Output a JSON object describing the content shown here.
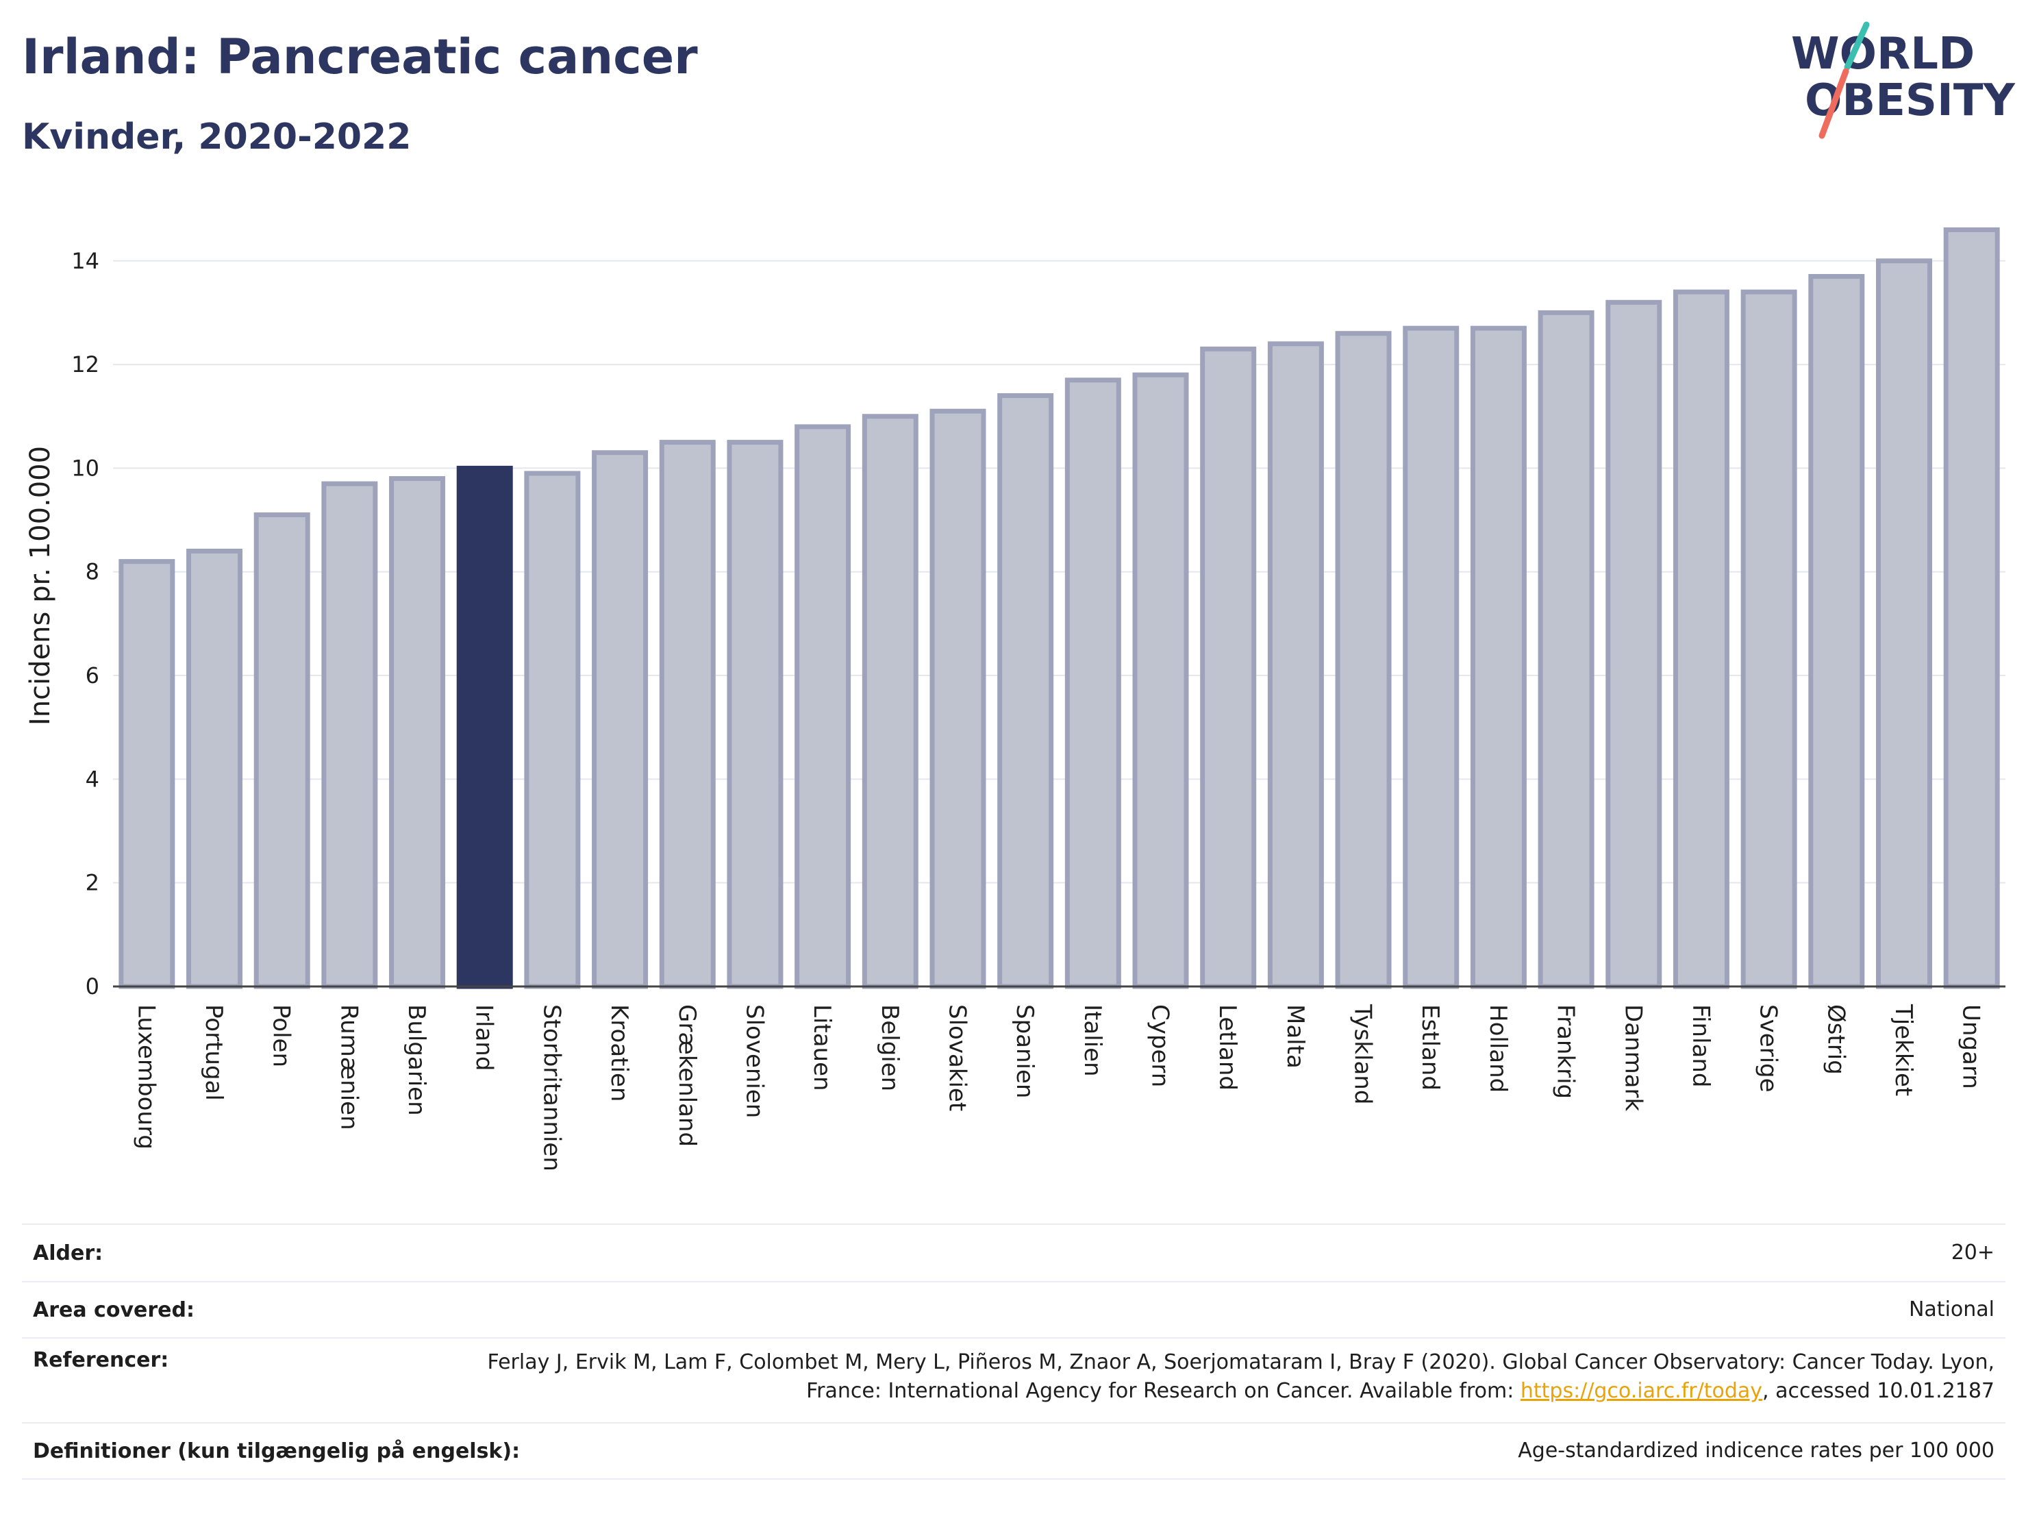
{
  "header": {
    "title": "Irland: Pancreatic cancer",
    "subtitle": "Kvinder, 2020-2022"
  },
  "logo": {
    "line1": "WORLD",
    "line2": "OBESITY"
  },
  "colors": {
    "highlight": "#2d3561",
    "bar_fill": "#bfc2cf",
    "bar_stroke": "#9ea3bb"
  },
  "chart_data": {
    "type": "bar",
    "categories": [
      "Luxembourg",
      "Portugal",
      "Polen",
      "Rumænien",
      "Bulgarien",
      "Irland",
      "Storbritannien",
      "Kroatien",
      "Grækenland",
      "Slovenien",
      "Litauen",
      "Belgien",
      "Slovakiet",
      "Spanien",
      "Italien",
      "Cypern",
      "Letland",
      "Malta",
      "Tyskland",
      "Estland",
      "Holland",
      "Frankrig",
      "Danmark",
      "Finland",
      "Sverige",
      "Østrig",
      "Tjekkiet",
      "Ungarn"
    ],
    "values": [
      8.2,
      8.4,
      9.1,
      9.7,
      9.8,
      10.0,
      9.9,
      10.3,
      10.5,
      10.5,
      10.8,
      11.0,
      11.1,
      11.4,
      11.7,
      11.8,
      12.3,
      12.4,
      12.6,
      12.7,
      12.7,
      13.0,
      13.2,
      13.4,
      13.4,
      13.7,
      14.0,
      14.6
    ],
    "highlight": "Irland",
    "ylabel": "Incidens pr. 100.000",
    "yticks": [
      0,
      2,
      4,
      6,
      8,
      10,
      12,
      14
    ],
    "ylim": [
      0,
      15.2
    ],
    "grid": true
  },
  "meta": [
    {
      "label": "Alder:",
      "value": "20+"
    },
    {
      "label": "Area covered:",
      "value": "National"
    },
    {
      "label": "Referencer:",
      "value_pre": "Ferlay J, Ervik M, Lam F, Colombet M, Mery L, Piñeros M, Znaor A, Soerjomataram I, Bray F (2020). Global Cancer Observatory: Cancer Today. Lyon, France: International Agency for Research on Cancer. Available from: ",
      "link": "https://gco.iarc.fr/today",
      "value_post": ", accessed 10.01.2187"
    },
    {
      "label": "Definitioner (kun tilgængelig på engelsk):",
      "value": "Age-standardized indicence rates per 100 000"
    }
  ]
}
